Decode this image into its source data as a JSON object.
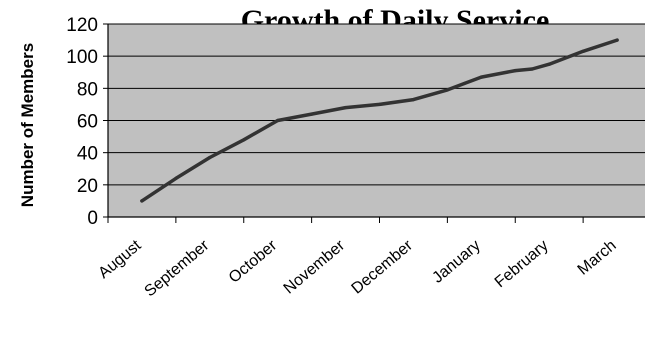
{
  "chart_data": {
    "type": "line",
    "title": "Growth of Daily Service",
    "xlabel": "",
    "ylabel": "Number of Members",
    "ylim": [
      0,
      120
    ],
    "yticks": [
      0,
      20,
      40,
      60,
      80,
      100,
      120
    ],
    "categories": [
      "August",
      "September",
      "October",
      "November",
      "December",
      "January",
      "February",
      "March"
    ],
    "grid": true,
    "legend": "none",
    "plot_background": "#c0c0c0",
    "line_color": "#333333",
    "series": [
      {
        "x": [
          0.5,
          1.0,
          1.5,
          2.0,
          2.5,
          3.0,
          3.5,
          4.0,
          4.5,
          5.0,
          5.25,
          5.5,
          6.0,
          6.25,
          6.5,
          7.0,
          7.5
        ],
        "y": [
          10,
          24,
          37,
          48,
          60,
          64,
          68,
          70,
          73,
          79,
          83,
          87,
          91,
          92,
          95,
          103,
          110
        ]
      }
    ]
  }
}
